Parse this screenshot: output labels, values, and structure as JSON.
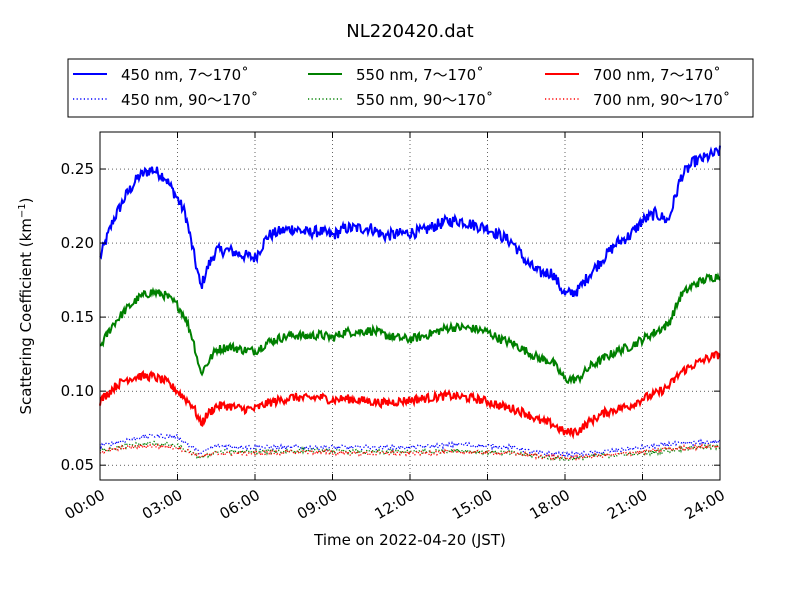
{
  "chart_data": {
    "type": "line",
    "title": "NL220420.dat",
    "xlabel": "Time on 2022-04-20 (JST)",
    "ylabel": "Scattering Coefficient (km",
    "ylabel_sup": "−1",
    "ylabel_close": ")",
    "xlim": [
      0,
      24
    ],
    "ylim": [
      0.04,
      0.275
    ],
    "grid": true,
    "legend_position": "top",
    "x_ticks": [
      {
        "value": 0,
        "label": "00:00"
      },
      {
        "value": 3,
        "label": "03:00"
      },
      {
        "value": 6,
        "label": "06:00"
      },
      {
        "value": 9,
        "label": "09:00"
      },
      {
        "value": 12,
        "label": "12:00"
      },
      {
        "value": 15,
        "label": "15:00"
      },
      {
        "value": 18,
        "label": "18:00"
      },
      {
        "value": 21,
        "label": "21:00"
      },
      {
        "value": 24,
        "label": "24:00"
      }
    ],
    "y_ticks": [
      {
        "value": 0.05,
        "label": "0.05"
      },
      {
        "value": 0.1,
        "label": "0.10"
      },
      {
        "value": 0.15,
        "label": "0.15"
      },
      {
        "value": 0.2,
        "label": "0.20"
      },
      {
        "value": 0.25,
        "label": "0.25"
      }
    ],
    "series": [
      {
        "name": "450 nm, 7～170˚",
        "color": "#0000ff",
        "style": "solid",
        "x": [
          0,
          0.5,
          1,
          1.5,
          2,
          2.5,
          3,
          3.3,
          3.6,
          3.9,
          4.2,
          4.5,
          5,
          5.5,
          6,
          6.5,
          7,
          7.5,
          8,
          8.5,
          9,
          9.5,
          10,
          10.5,
          11,
          11.5,
          12,
          12.5,
          13,
          13.5,
          14,
          14.5,
          15,
          15.5,
          16,
          16.5,
          17,
          17.5,
          18,
          18.5,
          19,
          19.5,
          20,
          20.5,
          21,
          21.5,
          22,
          22.5,
          23,
          23.5,
          24
        ],
        "y": [
          0.19,
          0.215,
          0.232,
          0.245,
          0.25,
          0.245,
          0.23,
          0.22,
          0.195,
          0.17,
          0.185,
          0.195,
          0.195,
          0.192,
          0.19,
          0.205,
          0.208,
          0.21,
          0.207,
          0.208,
          0.205,
          0.21,
          0.21,
          0.21,
          0.205,
          0.206,
          0.207,
          0.208,
          0.212,
          0.215,
          0.215,
          0.212,
          0.21,
          0.205,
          0.2,
          0.187,
          0.18,
          0.18,
          0.165,
          0.168,
          0.18,
          0.19,
          0.2,
          0.205,
          0.215,
          0.22,
          0.215,
          0.245,
          0.255,
          0.258,
          0.262
        ]
      },
      {
        "name": "550 nm, 7～170˚",
        "color": "#008000",
        "style": "solid",
        "x": [
          0,
          0.5,
          1,
          1.5,
          2,
          2.5,
          3,
          3.3,
          3.6,
          3.9,
          4.2,
          4.5,
          5,
          5.5,
          6,
          6.5,
          7,
          7.5,
          8,
          8.5,
          9,
          9.5,
          10,
          10.5,
          11,
          11.5,
          12,
          12.5,
          13,
          13.5,
          14,
          14.5,
          15,
          15.5,
          16,
          16.5,
          17,
          17.5,
          18,
          18.5,
          19,
          19.5,
          20,
          20.5,
          21,
          21.5,
          22,
          22.5,
          23,
          23.5,
          24
        ],
        "y": [
          0.13,
          0.145,
          0.155,
          0.163,
          0.167,
          0.165,
          0.158,
          0.15,
          0.135,
          0.112,
          0.12,
          0.128,
          0.13,
          0.128,
          0.127,
          0.133,
          0.136,
          0.138,
          0.137,
          0.138,
          0.136,
          0.14,
          0.14,
          0.141,
          0.138,
          0.136,
          0.135,
          0.137,
          0.14,
          0.143,
          0.143,
          0.142,
          0.14,
          0.135,
          0.132,
          0.127,
          0.122,
          0.12,
          0.108,
          0.108,
          0.117,
          0.122,
          0.127,
          0.13,
          0.135,
          0.14,
          0.145,
          0.165,
          0.172,
          0.176,
          0.178
        ]
      },
      {
        "name": "700 nm, 7～170˚",
        "color": "#ff0000",
        "style": "solid",
        "x": [
          0,
          0.5,
          1,
          1.5,
          2,
          2.5,
          3,
          3.3,
          3.6,
          3.9,
          4.2,
          4.5,
          5,
          5.5,
          6,
          6.5,
          7,
          7.5,
          8,
          8.5,
          9,
          9.5,
          10,
          10.5,
          11,
          11.5,
          12,
          12.5,
          13,
          13.5,
          14,
          14.5,
          15,
          15.5,
          16,
          16.5,
          17,
          17.5,
          18,
          18.5,
          19,
          19.5,
          20,
          20.5,
          21,
          21.5,
          22,
          22.5,
          23,
          23.5,
          24
        ],
        "y": [
          0.093,
          0.102,
          0.108,
          0.11,
          0.11,
          0.107,
          0.1,
          0.095,
          0.09,
          0.078,
          0.085,
          0.09,
          0.09,
          0.088,
          0.088,
          0.092,
          0.094,
          0.096,
          0.095,
          0.096,
          0.094,
          0.095,
          0.094,
          0.093,
          0.092,
          0.093,
          0.094,
          0.095,
          0.096,
          0.097,
          0.096,
          0.095,
          0.093,
          0.09,
          0.088,
          0.085,
          0.08,
          0.078,
          0.072,
          0.073,
          0.08,
          0.085,
          0.088,
          0.09,
          0.095,
          0.098,
          0.103,
          0.113,
          0.118,
          0.122,
          0.125
        ]
      },
      {
        "name": "450 nm, 90～170˚",
        "color": "#0000ff",
        "style": "dotted",
        "x": [
          0,
          1,
          2,
          3,
          3.9,
          4.5,
          6,
          8,
          10,
          12,
          14,
          16,
          17,
          18,
          19,
          20,
          21,
          22,
          23,
          24
        ],
        "y": [
          0.063,
          0.067,
          0.07,
          0.069,
          0.058,
          0.063,
          0.062,
          0.062,
          0.062,
          0.062,
          0.064,
          0.062,
          0.058,
          0.057,
          0.058,
          0.06,
          0.062,
          0.064,
          0.065,
          0.066
        ]
      },
      {
        "name": "550 nm, 90～170˚",
        "color": "#008000",
        "style": "dotted",
        "x": [
          0,
          1,
          2,
          3,
          3.9,
          4.5,
          6,
          8,
          10,
          12,
          14,
          16,
          17,
          18,
          19,
          20,
          21,
          22,
          23,
          24
        ],
        "y": [
          0.06,
          0.063,
          0.065,
          0.063,
          0.055,
          0.059,
          0.059,
          0.06,
          0.059,
          0.059,
          0.06,
          0.058,
          0.056,
          0.054,
          0.056,
          0.057,
          0.058,
          0.06,
          0.062,
          0.062
        ]
      },
      {
        "name": "700 nm, 90～170˚",
        "color": "#ff0000",
        "style": "dotted",
        "x": [
          0,
          1,
          2,
          3,
          3.9,
          4.5,
          6,
          8,
          10,
          12,
          14,
          16,
          17,
          18,
          19,
          20,
          21,
          22,
          23,
          24
        ],
        "y": [
          0.059,
          0.062,
          0.063,
          0.062,
          0.056,
          0.058,
          0.058,
          0.059,
          0.058,
          0.058,
          0.059,
          0.058,
          0.056,
          0.055,
          0.056,
          0.057,
          0.059,
          0.061,
          0.062,
          0.063
        ]
      }
    ],
    "legend_layout": [
      [
        "450 nm, 7～170˚",
        "550 nm, 7～170˚",
        "700 nm, 7～170˚"
      ],
      [
        "450 nm, 90～170˚",
        "550 nm, 90～170˚",
        "700 nm, 90～170˚"
      ]
    ]
  }
}
